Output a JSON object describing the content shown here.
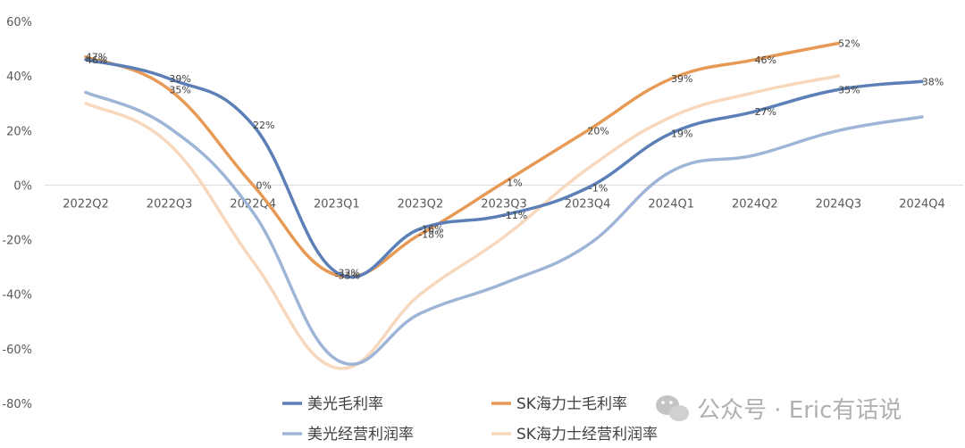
{
  "chart_data": {
    "type": "line",
    "categories": [
      "2022Q2",
      "2022Q3",
      "2022Q4",
      "2023Q1",
      "2023Q2",
      "2023Q3",
      "2023Q4",
      "2024Q1",
      "2024Q2",
      "2024Q3",
      "2024Q4"
    ],
    "ylim": [
      -80,
      60
    ],
    "yticks": [
      "60%",
      "40%",
      "20%",
      "0%",
      "-20%",
      "-40%",
      "-60%",
      "-80%"
    ],
    "ytick_values": [
      60,
      40,
      20,
      0,
      -20,
      -40,
      -60,
      -80
    ],
    "grid": false,
    "legend_position": "bottom",
    "series": [
      {
        "name": "美光毛利率",
        "color": "#5b7fb6",
        "width": 3.5,
        "labeled": true,
        "values": [
          46,
          39,
          22,
          -32,
          -16,
          -11,
          -1,
          19,
          27,
          35,
          38
        ],
        "labels": [
          "46%",
          "39%",
          "22%",
          "-32%",
          "-16%",
          "-11%",
          "-1%",
          "19%",
          "27%",
          "35%",
          "38%"
        ]
      },
      {
        "name": "SK海力士毛利率",
        "color": "#e69a55",
        "width": 3.5,
        "labeled": true,
        "values": [
          47,
          35,
          0,
          -33,
          -18,
          1,
          20,
          39,
          46,
          52,
          null
        ],
        "labels": [
          "47%",
          "35%",
          "0%",
          "-33%",
          "-18%",
          "1%",
          "20%",
          "39%",
          "46%",
          "52%",
          ""
        ]
      },
      {
        "name": "美光经营利润率",
        "color": "#9fb5d7",
        "width": 3.5,
        "labeled": false,
        "values": [
          34,
          21,
          -10,
          -64,
          -47,
          -36,
          -22,
          5,
          11,
          20,
          25
        ]
      },
      {
        "name": "SK海力士经营利润率",
        "color": "#f7d8bd",
        "width": 3.5,
        "labeled": false,
        "values": [
          30,
          15,
          -28,
          -67,
          -40,
          -19,
          6,
          25,
          34,
          40,
          null
        ]
      }
    ],
    "legend": [
      {
        "label": "美光毛利率"
      },
      {
        "label": "SK海力士毛利率"
      },
      {
        "label": "美光经营利润率"
      },
      {
        "label": "SK海力士经营利润率"
      }
    ]
  },
  "watermark": {
    "text": "公众号 · Eric有话说",
    "icon": "wechat-icon"
  }
}
